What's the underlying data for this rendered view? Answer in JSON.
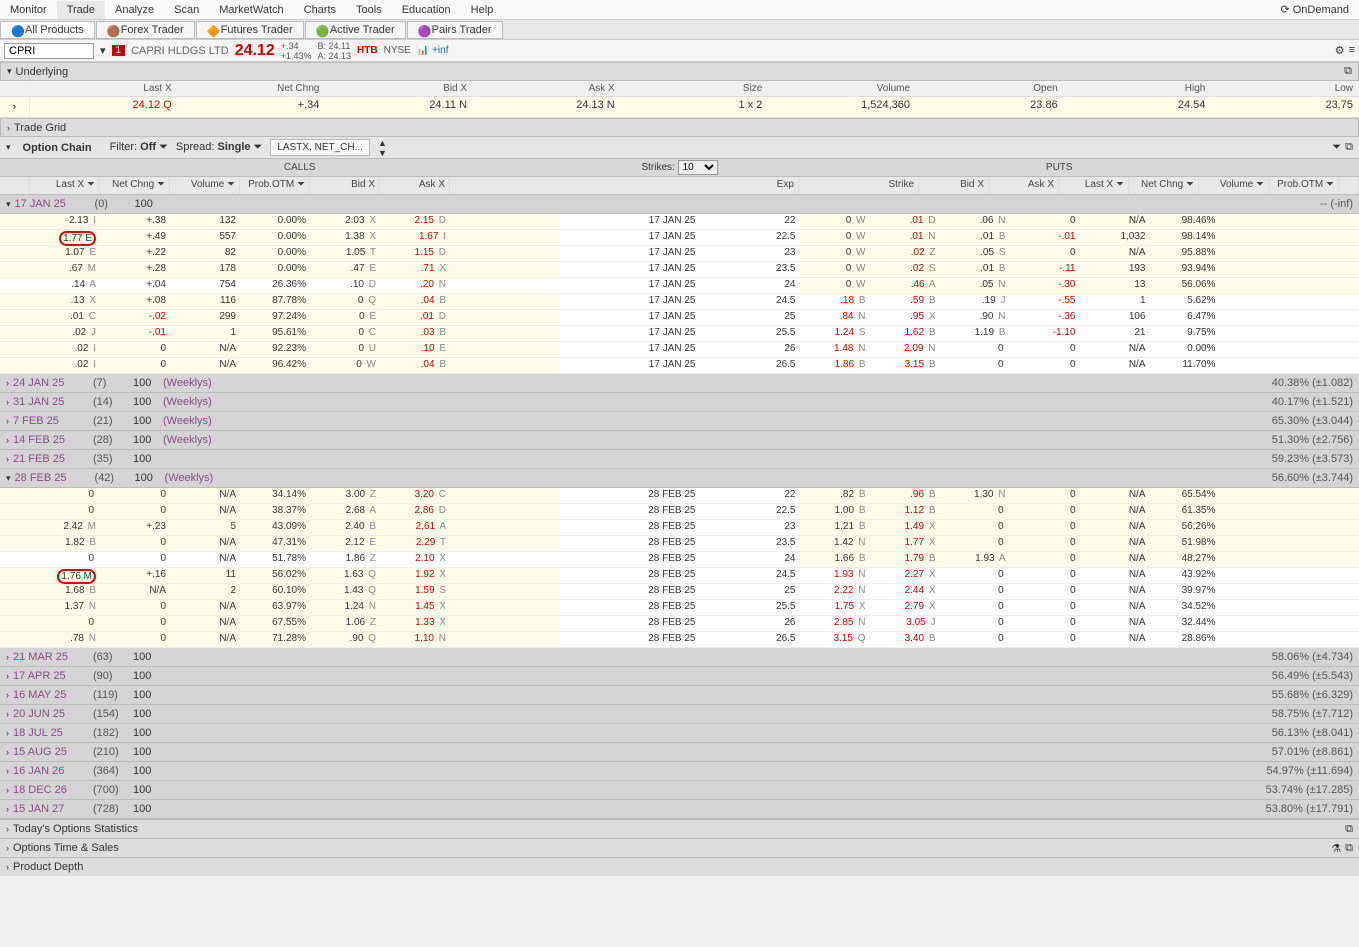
{
  "menu": {
    "items": [
      "Monitor",
      "Trade",
      "Analyze",
      "Scan",
      "MarketWatch",
      "Charts",
      "Tools",
      "Education",
      "Help"
    ],
    "active": 1,
    "ondemand": "OnDemand"
  },
  "tabs": {
    "items": [
      "All Products",
      "Forex Trader",
      "Futures Trader",
      "Active Trader",
      "Pairs Trader"
    ],
    "active": 0
  },
  "symbol": {
    "ticker": "CPRI",
    "name": "CAPRI HLDGS LTD",
    "price": "24.12",
    "chg": "+.34",
    "chgPct": "+1.43%",
    "bid": "B: 24.11",
    "ask": "A: 24.13",
    "htb": "HTB",
    "exchange": "NYSE",
    "inf": "+inf",
    "redbox": "1"
  },
  "sections": {
    "underlying": "Underlying",
    "tradegrid": "Trade Grid",
    "optionchain": "Option Chain",
    "todays": "Today's Options Statistics",
    "timesales": "Options Time & Sales",
    "depth": "Product Depth"
  },
  "underlying": {
    "headers": [
      "Last X",
      "Net Chng",
      "Bid X",
      "Ask X",
      "Size",
      "Volume",
      "Open",
      "High",
      "Low"
    ],
    "values": [
      "24.12 Q",
      "+.34",
      "24.11 N",
      "24.13 N",
      "1 x 2",
      "1,524,360",
      "23.86",
      "24.54",
      "23.75"
    ]
  },
  "filterbar": {
    "filter": "Filter:",
    "off": "Off",
    "spread": "Spread:",
    "single": "Single",
    "cols": "LASTX, NET_CH..."
  },
  "chainHeader": {
    "calls": "CALLS",
    "puts": "PUTS",
    "strikes": "Strikes:",
    "strikesVal": "10"
  },
  "colHeaders": {
    "lastx": "Last X",
    "netchng": "Net Chng",
    "volume": "Volume",
    "probOTM": "Prob.OTM",
    "bidx": "Bid X",
    "askx": "Ask X",
    "exp": "Exp",
    "strike": "Strike"
  },
  "expiries": [
    {
      "date": "17 JAN 25",
      "days": "(0)",
      "mult": "100",
      "weeklys": "",
      "right": "-- (-inf)",
      "expanded": true,
      "rows": [
        {
          "c": {
            "last": "2.13",
            "lx": "I",
            "chg": "+.38",
            "vol": "132",
            "prob": "0.00%",
            "bid": "2.03",
            "bx": "X",
            "ask": "2.15",
            "ax": "D"
          },
          "exp": "17 JAN 25",
          "strike": "22",
          "p": {
            "bid": "0",
            "bx": "W",
            "ask": ".01",
            "ax": "D",
            "last": ".06",
            "lx": "N",
            "chg": "0",
            "vol": "N/A",
            "prob": "98.46%"
          },
          "circle": false
        },
        {
          "c": {
            "last": "1.77",
            "lx": "E",
            "chg": "+.49",
            "vol": "557",
            "prob": "0.00%",
            "bid": "1.38",
            "bx": "X",
            "ask": "1.67",
            "ax": "I"
          },
          "exp": "17 JAN 25",
          "strike": "22.5",
          "p": {
            "bid": "0",
            "bx": "W",
            "ask": ".01",
            "ax": "N",
            "last": ".01",
            "lx": "B",
            "chg": "-.01",
            "vol": "1,032",
            "prob": "98.14%"
          },
          "circle": true
        },
        {
          "c": {
            "last": "1.07",
            "lx": "E",
            "chg": "+.22",
            "vol": "82",
            "prob": "0.00%",
            "bid": "1.05",
            "bx": "T",
            "ask": "1.15",
            "ax": "D"
          },
          "exp": "17 JAN 25",
          "strike": "23",
          "p": {
            "bid": "0",
            "bx": "W",
            "ask": ".02",
            "ax": "Z",
            "last": ".05",
            "lx": "S",
            "chg": "0",
            "vol": "N/A",
            "prob": "95.88%"
          },
          "circle": false
        },
        {
          "c": {
            "last": ".67",
            "lx": "M",
            "chg": "+.28",
            "vol": "178",
            "prob": "0.00%",
            "bid": ".47",
            "bx": "E",
            "ask": ".71",
            "ax": "X"
          },
          "exp": "17 JAN 25",
          "strike": "23.5",
          "p": {
            "bid": "0",
            "bx": "W",
            "ask": ".02",
            "ax": "S",
            "last": ".01",
            "lx": "B",
            "chg": "-.11",
            "vol": "193",
            "prob": "93.94%"
          },
          "circle": false
        },
        {
          "c": {
            "last": ".14",
            "lx": "A",
            "chg": "+.04",
            "vol": "754",
            "prob": "26.36%",
            "bid": ".10",
            "bx": "D",
            "ask": ".20",
            "ax": "N"
          },
          "exp": "17 JAN 25",
          "strike": "24",
          "p": {
            "bid": "0",
            "bx": "W",
            "ask": ".46",
            "ax": "A",
            "last": ".05",
            "lx": "N",
            "chg": "-.30",
            "vol": "13",
            "prob": "56.06%"
          },
          "circle": false,
          "itmCall": true
        },
        {
          "c": {
            "last": ".13",
            "lx": "X",
            "chg": "+.08",
            "vol": "116",
            "prob": "87.78%",
            "bid": "0",
            "bx": "Q",
            "ask": ".04",
            "ax": "B"
          },
          "exp": "17 JAN 25",
          "strike": "24.5",
          "p": {
            "bid": ".18",
            "bx": "B",
            "ask": ".59",
            "ax": "B",
            "last": ".19",
            "lx": "J",
            "chg": "-.55",
            "vol": "1",
            "prob": "5.62%"
          },
          "circle": false,
          "itmPut": true
        },
        {
          "c": {
            "last": ".01",
            "lx": "C",
            "chg": "-.02",
            "vol": "299",
            "prob": "97.24%",
            "bid": "0",
            "bx": "E",
            "ask": ".01",
            "ax": "D"
          },
          "exp": "17 JAN 25",
          "strike": "25",
          "p": {
            "bid": ".84",
            "bx": "N",
            "ask": ".95",
            "ax": "X",
            "last": ".90",
            "lx": "N",
            "chg": "-.36",
            "vol": "106",
            "prob": "6.47%"
          },
          "circle": false,
          "itmPut": true
        },
        {
          "c": {
            "last": ".02",
            "lx": "J",
            "chg": "-.01",
            "vol": "1",
            "prob": "95.61%",
            "bid": "0",
            "bx": "C",
            "ask": ".03",
            "ax": "B"
          },
          "exp": "17 JAN 25",
          "strike": "25.5",
          "p": {
            "bid": "1.24",
            "bx": "S",
            "ask": "1.62",
            "ax": "B",
            "last": "1.19",
            "lx": "B",
            "chg": "-1.10",
            "vol": "21",
            "prob": "9.75%"
          },
          "circle": false,
          "itmPut": true
        },
        {
          "c": {
            "last": ".02",
            "lx": "I",
            "chg": "0",
            "vol": "N/A",
            "prob": "92.23%",
            "bid": "0",
            "bx": "U",
            "ask": ".10",
            "ax": "E"
          },
          "exp": "17 JAN 25",
          "strike": "26",
          "p": {
            "bid": "1.48",
            "bx": "N",
            "ask": "2.09",
            "ax": "N",
            "last": "0",
            "lx": "",
            "chg": "0",
            "vol": "N/A",
            "prob": "0.00%"
          },
          "circle": false,
          "itmPut": true
        },
        {
          "c": {
            "last": ".02",
            "lx": "I",
            "chg": "0",
            "vol": "N/A",
            "prob": "96.42%",
            "bid": "0",
            "bx": "W",
            "ask": ".04",
            "ax": "B"
          },
          "exp": "17 JAN 25",
          "strike": "26.5",
          "p": {
            "bid": "1.86",
            "bx": "B",
            "ask": "3.15",
            "ax": "B",
            "last": "0",
            "lx": "",
            "chg": "0",
            "vol": "N/A",
            "prob": "11.70%"
          },
          "circle": false,
          "itmPut": true
        }
      ]
    },
    {
      "date": "24 JAN 25",
      "days": "(7)",
      "mult": "100",
      "weeklys": "(Weeklys)",
      "right": "40.38% (±1.082)",
      "expanded": false
    },
    {
      "date": "31 JAN 25",
      "days": "(14)",
      "mult": "100",
      "weeklys": "(Weeklys)",
      "right": "40.17% (±1.521)",
      "expanded": false
    },
    {
      "date": "7 FEB 25",
      "days": "(21)",
      "mult": "100",
      "weeklys": "(Weeklys)",
      "right": "65.30% (±3.044)",
      "expanded": false
    },
    {
      "date": "14 FEB 25",
      "days": "(28)",
      "mult": "100",
      "weeklys": "(Weeklys)",
      "right": "51.30% (±2.756)",
      "expanded": false
    },
    {
      "date": "21 FEB 25",
      "days": "(35)",
      "mult": "100",
      "weeklys": "",
      "right": "59.23% (±3.573)",
      "expanded": false
    },
    {
      "date": "28 FEB 25",
      "days": "(42)",
      "mult": "100",
      "weeklys": "(Weeklys)",
      "right": "56.60% (±3.744)",
      "expanded": true,
      "rows": [
        {
          "c": {
            "last": "0",
            "lx": "",
            "chg": "0",
            "vol": "N/A",
            "prob": "34.14%",
            "bid": "3.00",
            "bx": "Z",
            "ask": "3.20",
            "ax": "C"
          },
          "exp": "28 FEB 25",
          "strike": "22",
          "p": {
            "bid": ".82",
            "bx": "B",
            "ask": ".96",
            "ax": "B",
            "last": "1.30",
            "lx": "N",
            "chg": "0",
            "vol": "N/A",
            "prob": "65.54%"
          }
        },
        {
          "c": {
            "last": "0",
            "lx": "",
            "chg": "0",
            "vol": "N/A",
            "prob": "38.37%",
            "bid": "2.68",
            "bx": "A",
            "ask": "2.86",
            "ax": "D"
          },
          "exp": "28 FEB 25",
          "strike": "22.5",
          "p": {
            "bid": "1.00",
            "bx": "B",
            "ask": "1.12",
            "ax": "B",
            "last": "0",
            "lx": "",
            "chg": "0",
            "vol": "N/A",
            "prob": "61.35%"
          }
        },
        {
          "c": {
            "last": "2.42",
            "lx": "M",
            "chg": "+.23",
            "vol": "5",
            "prob": "43.09%",
            "bid": "2.40",
            "bx": "B",
            "ask": "2.61",
            "ax": "A"
          },
          "exp": "28 FEB 25",
          "strike": "23",
          "p": {
            "bid": "1.21",
            "bx": "B",
            "ask": "1.49",
            "ax": "X",
            "last": "0",
            "lx": "",
            "chg": "0",
            "vol": "N/A",
            "prob": "56.26%"
          }
        },
        {
          "c": {
            "last": "1.82",
            "lx": "B",
            "chg": "0",
            "vol": "N/A",
            "prob": "47.31%",
            "bid": "2.12",
            "bx": "E",
            "ask": "2.29",
            "ax": "T"
          },
          "exp": "28 FEB 25",
          "strike": "23.5",
          "p": {
            "bid": "1.42",
            "bx": "N",
            "ask": "1.77",
            "ax": "X",
            "last": "0",
            "lx": "",
            "chg": "0",
            "vol": "N/A",
            "prob": "51.98%"
          }
        },
        {
          "c": {
            "last": "0",
            "lx": "",
            "chg": "0",
            "vol": "N/A",
            "prob": "51.78%",
            "bid": "1.86",
            "bx": "Z",
            "ask": "2.10",
            "ax": "X"
          },
          "exp": "28 FEB 25",
          "strike": "24",
          "p": {
            "bid": "1.66",
            "bx": "B",
            "ask": "1.79",
            "ax": "B",
            "last": "1.93",
            "lx": "A",
            "chg": "0",
            "vol": "N/A",
            "prob": "48.27%"
          },
          "itmCall": true
        },
        {
          "c": {
            "last": "1.76",
            "lx": "M",
            "chg": "+.16",
            "vol": "11",
            "prob": "56.02%",
            "bid": "1.63",
            "bx": "Q",
            "ask": "1.92",
            "ax": "X"
          },
          "exp": "28 FEB 25",
          "strike": "24.5",
          "p": {
            "bid": "1.93",
            "bx": "N",
            "ask": "2.27",
            "ax": "X",
            "last": "0",
            "lx": "",
            "chg": "0",
            "vol": "N/A",
            "prob": "43.92%"
          },
          "circle": true,
          "itmPut": true
        },
        {
          "c": {
            "last": "1.68",
            "lx": "B",
            "chg": "N/A",
            "vol": "2",
            "prob": "60.10%",
            "bid": "1.43",
            "bx": "Q",
            "ask": "1.59",
            "ax": "S"
          },
          "exp": "28 FEB 25",
          "strike": "25",
          "p": {
            "bid": "2.22",
            "bx": "N",
            "ask": "2.44",
            "ax": "X",
            "last": "0",
            "lx": "",
            "chg": "0",
            "vol": "N/A",
            "prob": "39.97%"
          },
          "itmPut": true
        },
        {
          "c": {
            "last": "1.37",
            "lx": "N",
            "chg": "0",
            "vol": "N/A",
            "prob": "63.97%",
            "bid": "1.24",
            "bx": "N",
            "ask": "1.45",
            "ax": "X"
          },
          "exp": "28 FEB 25",
          "strike": "25.5",
          "p": {
            "bid": "1.75",
            "bx": "X",
            "ask": "2.79",
            "ax": "X",
            "last": "0",
            "lx": "",
            "chg": "0",
            "vol": "N/A",
            "prob": "34.52%"
          },
          "itmPut": true
        },
        {
          "c": {
            "last": "0",
            "lx": "",
            "chg": "0",
            "vol": "N/A",
            "prob": "67.55%",
            "bid": "1.06",
            "bx": "Z",
            "ask": "1.33",
            "ax": "X"
          },
          "exp": "28 FEB 25",
          "strike": "26",
          "p": {
            "bid": "2.85",
            "bx": "N",
            "ask": "3.05",
            "ax": "J",
            "last": "0",
            "lx": "",
            "chg": "0",
            "vol": "N/A",
            "prob": "32.44%"
          },
          "itmPut": true
        },
        {
          "c": {
            "last": ".78",
            "lx": "N",
            "chg": "0",
            "vol": "N/A",
            "prob": "71.28%",
            "bid": ".90",
            "bx": "Q",
            "ask": "1.10",
            "ax": "N"
          },
          "exp": "28 FEB 25",
          "strike": "26.5",
          "p": {
            "bid": "3.15",
            "bx": "Q",
            "ask": "3.40",
            "ax": "B",
            "last": "0",
            "lx": "",
            "chg": "0",
            "vol": "N/A",
            "prob": "28.86%"
          },
          "itmPut": true
        }
      ]
    },
    {
      "date": "21 MAR 25",
      "days": "(63)",
      "mult": "100",
      "weeklys": "",
      "right": "58.06% (±4.734)",
      "expanded": false
    },
    {
      "date": "17 APR 25",
      "days": "(90)",
      "mult": "100",
      "weeklys": "",
      "right": "56.49% (±5.543)",
      "expanded": false
    },
    {
      "date": "16 MAY 25",
      "days": "(119)",
      "mult": "100",
      "weeklys": "",
      "right": "55.68% (±6.329)",
      "expanded": false
    },
    {
      "date": "20 JUN 25",
      "days": "(154)",
      "mult": "100",
      "weeklys": "",
      "right": "58.75% (±7.712)",
      "expanded": false
    },
    {
      "date": "18 JUL 25",
      "days": "(182)",
      "mult": "100",
      "weeklys": "",
      "right": "56.13% (±8.041)",
      "expanded": false
    },
    {
      "date": "15 AUG 25",
      "days": "(210)",
      "mult": "100",
      "weeklys": "",
      "right": "57.01% (±8.861)",
      "expanded": false
    },
    {
      "date": "16 JAN 26",
      "days": "(364)",
      "mult": "100",
      "weeklys": "",
      "right": "54.97% (±11.694)",
      "expanded": false
    },
    {
      "date": "18 DEC 26",
      "days": "(700)",
      "mult": "100",
      "weeklys": "",
      "right": "53.74% (±17.285)",
      "expanded": false
    },
    {
      "date": "15 JAN 27",
      "days": "(728)",
      "mult": "100",
      "weeklys": "",
      "right": "53.80% (±17.791)",
      "expanded": false
    }
  ]
}
